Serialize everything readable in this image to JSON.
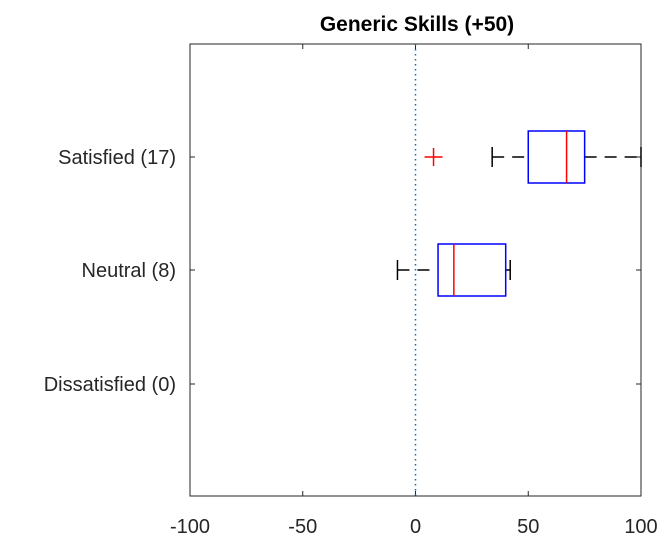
{
  "chart_data": {
    "type": "boxplot",
    "orientation": "horizontal",
    "title": "Generic Skills (+50)",
    "xlabel": "",
    "ylabel": "",
    "xlim": [
      -100,
      100
    ],
    "xticks": [
      -100,
      -50,
      0,
      50,
      100
    ],
    "categories": [
      "Satisfied (17)",
      "Neutral (8)",
      "Dissatisfied (0)"
    ],
    "boxes": [
      {
        "category": "Satisfied (17)",
        "whisker_low": 34,
        "q1": 50,
        "median": 67,
        "q3": 75,
        "whisker_high": 100,
        "outliers": [
          8
        ]
      },
      {
        "category": "Neutral (8)",
        "whisker_low": -8,
        "q1": 10,
        "median": 17,
        "q3": 40,
        "whisker_high": 42,
        "outliers": []
      },
      {
        "category": "Dissatisfied (0)",
        "whisker_low": null,
        "q1": null,
        "median": null,
        "q3": null,
        "whisker_high": null,
        "outliers": []
      }
    ],
    "reference_line": {
      "x": 0,
      "style": "dotted"
    },
    "grid": false,
    "colors": {
      "box": "#0000ff",
      "median": "#ff0000",
      "whisker": "#000000",
      "outlier": "#ff0000",
      "reference_line": "#0072bd",
      "axis": "#262626"
    }
  }
}
